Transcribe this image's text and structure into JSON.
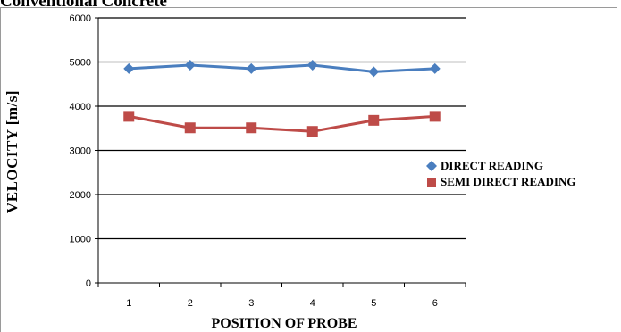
{
  "heading": "Conventional Concrete",
  "chart_data": {
    "type": "line",
    "categories": [
      "1",
      "2",
      "3",
      "4",
      "5",
      "6"
    ],
    "series": [
      {
        "name": "DIRECT READING",
        "values": [
          4850,
          4930,
          4850,
          4930,
          4780,
          4850
        ],
        "color": "#4a7ebf",
        "marker": "diamond"
      },
      {
        "name": "SEMI DIRECT READING",
        "values": [
          3770,
          3510,
          3510,
          3430,
          3680,
          3770
        ],
        "color": "#be4b48",
        "marker": "square"
      }
    ],
    "xlabel": "POSITION OF PROBE",
    "ylabel": "VELOCITY [m/s]",
    "ylim": [
      0,
      6000
    ],
    "yticks": [
      "0",
      "1000",
      "2000",
      "3000",
      "4000",
      "5000",
      "6000"
    ],
    "grid": true,
    "legend": "right"
  }
}
